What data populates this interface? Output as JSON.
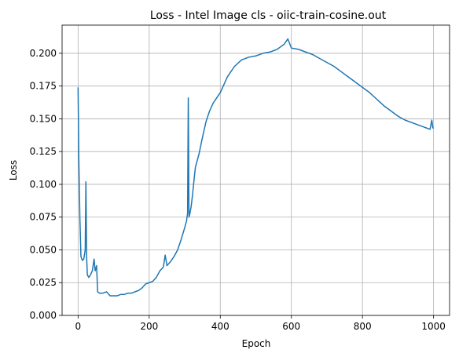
{
  "chart_data": {
    "type": "line",
    "title": "Loss - Intel Image cls - oiic-train-cosine.out",
    "xlabel": "Epoch",
    "ylabel": "Loss",
    "xlim": [
      -45,
      1045
    ],
    "ylim": [
      0,
      0.2215
    ],
    "xticks": [
      0,
      200,
      400,
      600,
      800,
      1000
    ],
    "yticks": [
      0.0,
      0.025,
      0.05,
      0.075,
      0.1,
      0.125,
      0.15,
      0.175,
      0.2
    ],
    "ytick_labels": [
      "0.000",
      "0.025",
      "0.050",
      "0.075",
      "0.100",
      "0.125",
      "0.150",
      "0.175",
      "0.200"
    ],
    "grid": true,
    "legend": "none",
    "series": [
      {
        "color": "#1f77b4",
        "x": [
          0,
          2,
          5,
          8,
          12,
          16,
          20,
          22,
          24,
          26,
          30,
          35,
          40,
          45,
          48,
          52,
          55,
          60,
          70,
          80,
          90,
          100,
          110,
          120,
          130,
          140,
          150,
          160,
          170,
          180,
          190,
          200,
          210,
          220,
          230,
          240,
          245,
          250,
          260,
          270,
          280,
          290,
          300,
          305,
          308,
          310,
          312,
          314,
          318,
          322,
          326,
          330,
          340,
          350,
          360,
          370,
          380,
          390,
          400,
          420,
          440,
          460,
          480,
          500,
          520,
          540,
          560,
          570,
          580,
          590,
          600,
          620,
          640,
          660,
          680,
          700,
          720,
          740,
          760,
          780,
          800,
          820,
          840,
          860,
          880,
          900,
          920,
          940,
          960,
          970,
          980,
          990,
          995,
          998,
          1000
        ],
        "y": [
          0.174,
          0.12,
          0.075,
          0.045,
          0.042,
          0.043,
          0.05,
          0.102,
          0.045,
          0.031,
          0.029,
          0.031,
          0.034,
          0.043,
          0.034,
          0.038,
          0.018,
          0.017,
          0.017,
          0.018,
          0.015,
          0.015,
          0.015,
          0.016,
          0.016,
          0.017,
          0.017,
          0.018,
          0.019,
          0.021,
          0.024,
          0.025,
          0.026,
          0.029,
          0.034,
          0.037,
          0.046,
          0.038,
          0.041,
          0.045,
          0.05,
          0.058,
          0.067,
          0.072,
          0.078,
          0.166,
          0.075,
          0.077,
          0.083,
          0.092,
          0.103,
          0.113,
          0.123,
          0.136,
          0.148,
          0.156,
          0.162,
          0.166,
          0.17,
          0.182,
          0.19,
          0.195,
          0.197,
          0.198,
          0.2,
          0.201,
          0.203,
          0.205,
          0.207,
          0.211,
          0.204,
          0.203,
          0.201,
          0.199,
          0.196,
          0.193,
          0.19,
          0.186,
          0.182,
          0.178,
          0.174,
          0.17,
          0.165,
          0.16,
          0.156,
          0.152,
          0.149,
          0.147,
          0.145,
          0.144,
          0.143,
          0.142,
          0.149,
          0.143,
          0.143
        ]
      }
    ]
  }
}
